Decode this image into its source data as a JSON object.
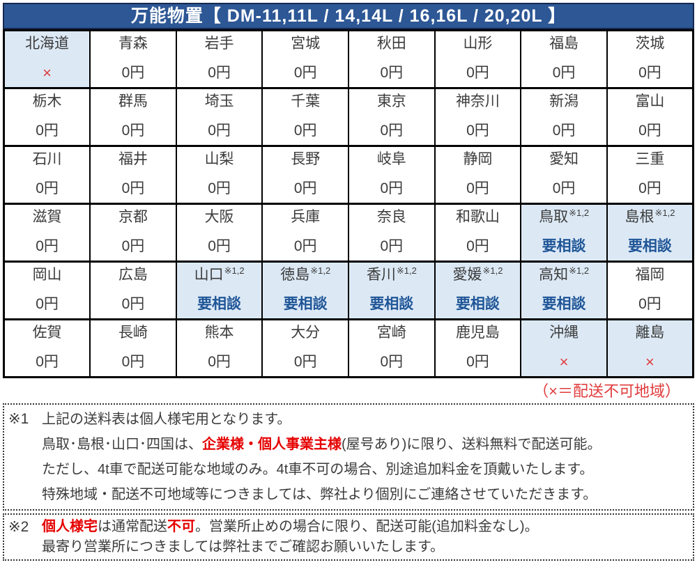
{
  "header": {
    "title": "万能物置【 DM-11,11L / 14,14L / 16,16L / 20,20L 】"
  },
  "colors": {
    "header_bg": "#2d5795",
    "header_border": "#17294e",
    "highlight_bg": "#dce9f5",
    "text_dark": "#3b3b3b",
    "consult_navy": "#1f5597",
    "x_red": "#e03c3c",
    "note_red": "#e60000"
  },
  "table": {
    "rows": [
      [
        {
          "name": "北海道",
          "value": "×",
          "type": "x",
          "highlight": true
        },
        {
          "name": "青森",
          "value": "0円"
        },
        {
          "name": "岩手",
          "value": "0円"
        },
        {
          "name": "宮城",
          "value": "0円"
        },
        {
          "name": "秋田",
          "value": "0円"
        },
        {
          "name": "山形",
          "value": "0円"
        },
        {
          "name": "福島",
          "value": "0円"
        },
        {
          "name": "茨城",
          "value": "0円"
        }
      ],
      [
        {
          "name": "栃木",
          "value": "0円"
        },
        {
          "name": "群馬",
          "value": "0円"
        },
        {
          "name": "埼玉",
          "value": "0円"
        },
        {
          "name": "千葉",
          "value": "0円"
        },
        {
          "name": "東京",
          "value": "0円"
        },
        {
          "name": "神奈川",
          "value": "0円"
        },
        {
          "name": "新潟",
          "value": "0円"
        },
        {
          "name": "富山",
          "value": "0円"
        }
      ],
      [
        {
          "name": "石川",
          "value": "0円"
        },
        {
          "name": "福井",
          "value": "0円"
        },
        {
          "name": "山梨",
          "value": "0円"
        },
        {
          "name": "長野",
          "value": "0円"
        },
        {
          "name": "岐阜",
          "value": "0円"
        },
        {
          "name": "静岡",
          "value": "0円"
        },
        {
          "name": "愛知",
          "value": "0円"
        },
        {
          "name": "三重",
          "value": "0円"
        }
      ],
      [
        {
          "name": "滋賀",
          "value": "0円"
        },
        {
          "name": "京都",
          "value": "0円"
        },
        {
          "name": "大阪",
          "value": "0円"
        },
        {
          "name": "兵庫",
          "value": "0円"
        },
        {
          "name": "奈良",
          "value": "0円"
        },
        {
          "name": "和歌山",
          "value": "0円"
        },
        {
          "name": "鳥取",
          "sup": "※1,2",
          "value": "要相談",
          "type": "consult",
          "highlight": true
        },
        {
          "name": "島根",
          "sup": "※1,2",
          "value": "要相談",
          "type": "consult",
          "highlight": true
        }
      ],
      [
        {
          "name": "岡山",
          "value": "0円"
        },
        {
          "name": "広島",
          "value": "0円"
        },
        {
          "name": "山口",
          "sup": "※1,2",
          "value": "要相談",
          "type": "consult",
          "highlight": true
        },
        {
          "name": "徳島",
          "sup": "※1,2",
          "value": "要相談",
          "type": "consult",
          "highlight": true
        },
        {
          "name": "香川",
          "sup": "※1,2",
          "value": "要相談",
          "type": "consult",
          "highlight": true
        },
        {
          "name": "愛媛",
          "sup": "※1,2",
          "value": "要相談",
          "type": "consult",
          "highlight": true
        },
        {
          "name": "高知",
          "sup": "※1,2",
          "value": "要相談",
          "type": "consult",
          "highlight": true
        },
        {
          "name": "福岡",
          "value": "0円"
        }
      ],
      [
        {
          "name": "佐賀",
          "value": "0円"
        },
        {
          "name": "長崎",
          "value": "0円"
        },
        {
          "name": "熊本",
          "value": "0円"
        },
        {
          "name": "大分",
          "value": "0円"
        },
        {
          "name": "宮崎",
          "value": "0円"
        },
        {
          "name": "鹿児島",
          "value": "0円"
        },
        {
          "name": "沖縄",
          "value": "×",
          "type": "x",
          "highlight": true
        },
        {
          "name": "離島",
          "value": "×",
          "type": "x",
          "highlight": true
        }
      ]
    ]
  },
  "legend": "（×＝配送不可地域）",
  "notes": [
    {
      "marker": "※1",
      "lines": [
        [
          {
            "t": "上記の送料表は個人様宅用となります。"
          }
        ],
        [
          {
            "t": "鳥取･島根･山口･四国は、"
          },
          {
            "t": "企業様・個人事業主様",
            "red": true
          },
          {
            "t": "(屋号あり)に限り、送料無料で配送可能。"
          }
        ],
        [
          {
            "t": "ただし、4t車で配送可能な地域のみ。4t車不可の場合、別途追加料金を頂戴いたします。"
          }
        ],
        [
          {
            "t": "特殊地域・配送不可地域等につきましては、弊社より個別にご連絡させていただきます。"
          }
        ]
      ]
    },
    {
      "marker": "※2",
      "lines": [
        [
          {
            "t": "個人様宅",
            "red": true
          },
          {
            "t": "は通常配送"
          },
          {
            "t": "不可",
            "red": true
          },
          {
            "t": "。営業所止めの場合に限り、配送可能(追加料金なし)。"
          }
        ],
        [
          {
            "t": "最寄り営業所につきましては弊社までご確認お願いいたします。"
          }
        ]
      ]
    }
  ]
}
